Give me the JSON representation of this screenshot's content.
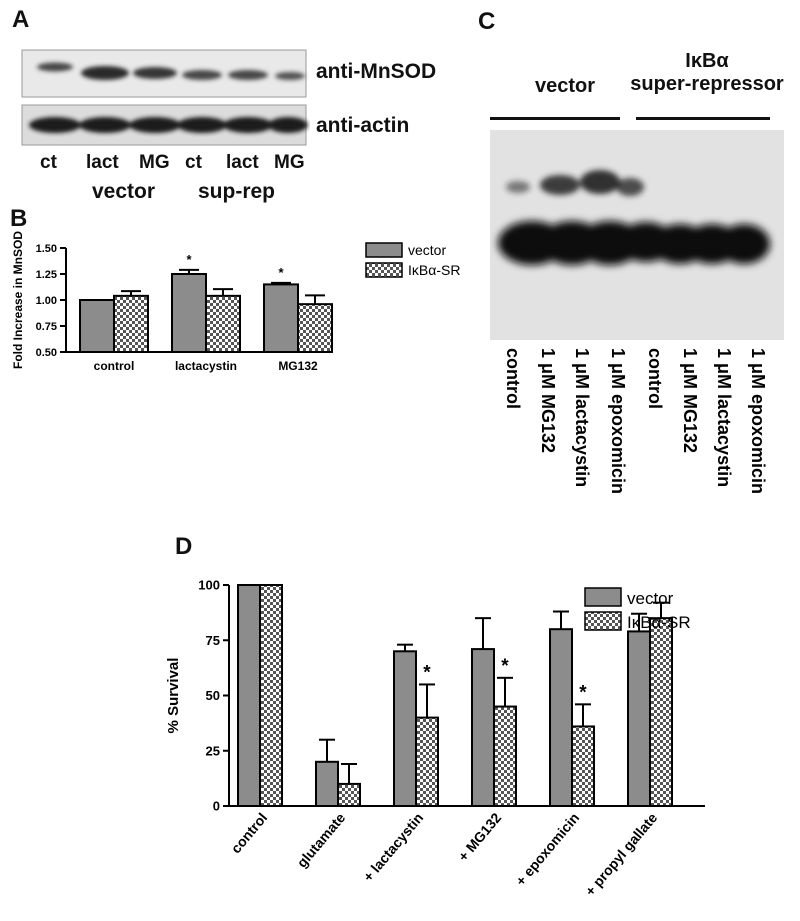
{
  "panels": {
    "a": {
      "letter": "A",
      "blots": [
        "anti-MnSOD",
        "anti-actin"
      ],
      "lanes": [
        "ct",
        "lact",
        "MG",
        "ct",
        "lact",
        "MG"
      ],
      "groups": [
        "vector",
        "sup-rep"
      ]
    },
    "b": {
      "letter": "B"
    },
    "c": {
      "letter": "C",
      "group1": "vector",
      "group2_line1": "IκBα",
      "group2_line2": "super-repressor",
      "lanes": [
        "control",
        "1 μM MG132",
        "1 μM lactacystin",
        "1 μM epoxomicin",
        "control",
        "1 μM MG132",
        "1 μM lactacystin",
        "1 μM epoxomicin"
      ]
    },
    "d": {
      "letter": "D"
    }
  },
  "chart_data": [
    {
      "id": "B",
      "type": "bar",
      "ylabel": "Fold Increase in MnSOD",
      "ylim": [
        0.5,
        1.5
      ],
      "yticks": [
        "0.50",
        "0.75",
        "1.00",
        "1.25",
        "1.50"
      ],
      "categories": [
        "control",
        "lactacystin",
        "MG132"
      ],
      "series": [
        {
          "name": "vector",
          "color": "#8c8c8c",
          "values": [
            1.0,
            1.25,
            1.15
          ],
          "errors": [
            0,
            0.04,
            0.015
          ],
          "stars": [
            "",
            "*",
            "*"
          ]
        },
        {
          "name": "IκBα-SR",
          "pattern": "checker",
          "values": [
            1.04,
            1.04,
            0.96
          ],
          "errors": [
            0.045,
            0.065,
            0.085
          ],
          "stars": [
            "",
            "",
            ""
          ]
        }
      ],
      "legend": "right"
    },
    {
      "id": "D",
      "type": "bar",
      "ylabel": "% Survival",
      "ylim": [
        0,
        100
      ],
      "yticks": [
        "0",
        "25",
        "50",
        "75",
        "100"
      ],
      "categories": [
        "control",
        "glutamate",
        "+ lactacystin",
        "+ MG132",
        "+ epoxomicin",
        "+ propyl gallate"
      ],
      "series": [
        {
          "name": "vector",
          "color": "#8c8c8c",
          "values": [
            100,
            20,
            70,
            71,
            80,
            79
          ],
          "errors": [
            0,
            10,
            3,
            14,
            8,
            8
          ],
          "stars": [
            "",
            "",
            "",
            "",
            "",
            ""
          ]
        },
        {
          "name": "IκBα-SR",
          "pattern": "checker",
          "values": [
            100,
            10,
            40,
            45,
            36,
            85
          ],
          "errors": [
            0,
            9,
            15,
            13,
            10,
            7
          ],
          "stars": [
            "",
            "",
            "*",
            "*",
            "*",
            ""
          ]
        }
      ],
      "legend": "right"
    }
  ]
}
